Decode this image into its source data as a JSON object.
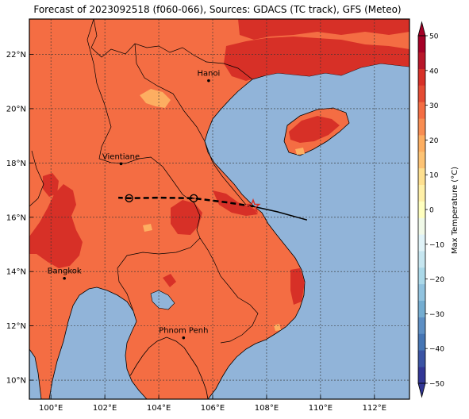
{
  "title": "Forecast of 2023092518 (f060-066), Sources: GDACS (TC track), GFS (Meteo)",
  "map": {
    "lon_range": [
      99.2,
      113.3
    ],
    "lat_range": [
      9.3,
      23.3
    ],
    "lon_ticks": [
      {
        "v": 100,
        "label": "100°E"
      },
      {
        "v": 102,
        "label": "102°E"
      },
      {
        "v": 104,
        "label": "104°E"
      },
      {
        "v": 106,
        "label": "106°E"
      },
      {
        "v": 108,
        "label": "108°E"
      },
      {
        "v": 110,
        "label": "110°E"
      },
      {
        "v": 112,
        "label": "112°E"
      }
    ],
    "lat_ticks": [
      {
        "v": 10,
        "label": "10°N"
      },
      {
        "v": 12,
        "label": "12°N"
      },
      {
        "v": 14,
        "label": "14°N"
      },
      {
        "v": 16,
        "label": "16°N"
      },
      {
        "v": 18,
        "label": "18°N"
      },
      {
        "v": 20,
        "label": "20°N"
      },
      {
        "v": 22,
        "label": "22°N"
      }
    ],
    "grid": true,
    "colors": {
      "sea": "#91b4d9",
      "land": "#f46d43",
      "hot": "#d73027",
      "warm": "#fdae61",
      "border": "#000000"
    },
    "cities": [
      {
        "name": "Hanoi",
        "lon": 105.85,
        "lat": 21.03
      },
      {
        "name": "Vientiane",
        "lon": 102.6,
        "lat": 17.97
      },
      {
        "name": "Bangkok",
        "lon": 100.5,
        "lat": 13.75
      },
      {
        "name": "Phnom Penh",
        "lon": 104.92,
        "lat": 11.56
      }
    ],
    "track_observed": [
      [
        109.5,
        15.9
      ],
      [
        108.4,
        16.2
      ],
      [
        107.5,
        16.4
      ]
    ],
    "track_forecast": [
      [
        107.5,
        16.4
      ],
      [
        106.5,
        16.55
      ],
      [
        105.3,
        16.7
      ],
      [
        104.0,
        16.72
      ],
      [
        102.9,
        16.7
      ],
      [
        102.5,
        16.72
      ]
    ],
    "track_points": [
      [
        105.3,
        16.7
      ],
      [
        102.9,
        16.7
      ]
    ],
    "storm_position": [
      107.5,
      16.4
    ]
  },
  "colorbar": {
    "label": "Max Temperature (°C)",
    "min": -50,
    "max": 50,
    "step": 5,
    "ticks": [
      50,
      40,
      30,
      20,
      10,
      0,
      -10,
      -20,
      -30,
      -40,
      -50
    ],
    "tick_labels": [
      "50",
      "40",
      "30",
      "20",
      "10",
      "0",
      "−10",
      "−20",
      "−30",
      "−40",
      "−50"
    ],
    "colors": [
      "#313695",
      "#3a53a4",
      "#4575b4",
      "#5d8fc4",
      "#74add1",
      "#91c3df",
      "#abd9e9",
      "#c6e6f0",
      "#e0f3f8",
      "#f0f9e8",
      "#ffffbf",
      "#fff0a8",
      "#fee090",
      "#fdc374",
      "#fdae61",
      "#f88d52",
      "#f46d43",
      "#e44b33",
      "#d73027",
      "#b81629",
      "#a50026"
    ]
  }
}
